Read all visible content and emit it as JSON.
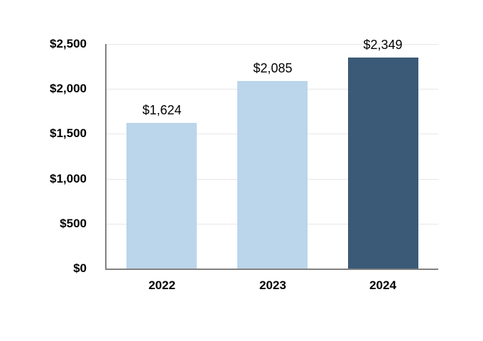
{
  "chart_data": {
    "type": "bar",
    "title": "",
    "xlabel": "",
    "ylabel": "",
    "categories": [
      "2022",
      "2023",
      "2024"
    ],
    "values": [
      1624,
      2085,
      2349
    ],
    "value_labels": [
      "$1,624",
      "$2,085",
      "$2,349"
    ],
    "bar_colors": [
      "#BBD5EA",
      "#BBD5EA",
      "#3B5A77"
    ],
    "ylim": [
      0,
      2500
    ],
    "yticks": [
      0,
      500,
      1000,
      1500,
      2000,
      2500
    ],
    "ytick_labels": [
      "$0",
      "$500",
      "$1,000",
      "$1,500",
      "$2,000",
      "$2,500"
    ],
    "grid": true,
    "legend": "none",
    "colors": {
      "axis_line": "#808080",
      "gridline": "#E7E7E7",
      "text": "#000000",
      "background": "#FFFFFF"
    }
  }
}
